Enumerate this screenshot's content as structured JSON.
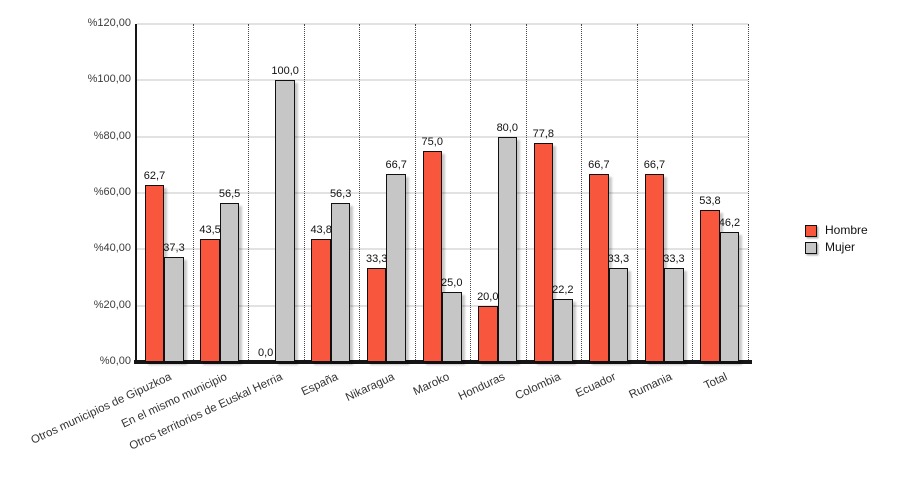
{
  "chart_data": {
    "type": "bar",
    "categories": [
      "Otros municipios de Gipuzkoa",
      "En el mismo municipio",
      "Otros territorios de Euskal Herria",
      "España",
      "Nikaragua",
      "Maroko",
      "Honduras",
      "Colombia",
      "Ecuador",
      "Rumania",
      "Total"
    ],
    "series": [
      {
        "name": "Hombre",
        "color": "#f8573e",
        "values": [
          62.7,
          43.5,
          0.0,
          43.8,
          33.3,
          75.0,
          20.0,
          77.8,
          66.7,
          66.7,
          53.8
        ],
        "labels": [
          "62,7",
          "43,5",
          "0,0",
          "43,8",
          "33,3",
          "75,0",
          "20,0",
          "77,8",
          "66,7",
          "66,7",
          "53,8"
        ]
      },
      {
        "name": "Mujer",
        "color": "#c6c6c6",
        "values": [
          37.3,
          56.5,
          100.0,
          56.3,
          66.7,
          25.0,
          80.0,
          22.2,
          33.3,
          33.3,
          46.2
        ],
        "labels": [
          "37,3",
          "56,5",
          "100,0",
          "56,3",
          "66,7",
          "25,0",
          "80,0",
          "22,2",
          "33,3",
          "33,3",
          "46,2"
        ]
      }
    ],
    "y_axis": {
      "min": 0,
      "max": 120,
      "step": 20,
      "tick_labels": [
        "%0,00",
        "%20,00",
        "%40,00",
        "%60,00",
        "%80,00",
        "%100,00",
        "%120,00"
      ]
    },
    "legend": {
      "position": "right",
      "entries": [
        "Hombre",
        "Mujer"
      ]
    },
    "grid": {
      "horizontal": true,
      "vertical": "dotted"
    }
  }
}
